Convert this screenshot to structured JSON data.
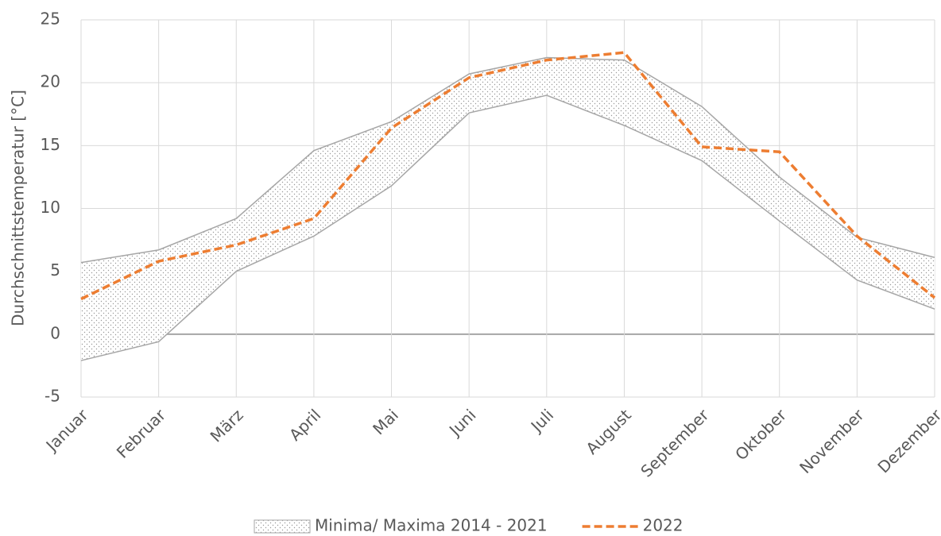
{
  "chart_data": {
    "type": "line",
    "y_label": "Durchschnittstemperatur [°C]",
    "categories": [
      "Januar",
      "Februar",
      "März",
      "April",
      "Mai",
      "Juni",
      "Juli",
      "August",
      "September",
      "Oktober",
      "November",
      "Dezember"
    ],
    "series": [
      {
        "name": "Minima/ Maxima 2014 - 2021",
        "color": "#a6a6a6",
        "upper": [
          5.7,
          6.7,
          9.2,
          14.6,
          16.9,
          20.7,
          22.0,
          21.8,
          18.1,
          12.5,
          7.7,
          6.1
        ],
        "lower": [
          -2.1,
          -0.6,
          5.0,
          7.8,
          11.8,
          17.6,
          19.0,
          16.6,
          13.8,
          9.0,
          4.3,
          2.0
        ]
      },
      {
        "name": "2022",
        "color": "#ed7d31",
        "dashed": true,
        "values": [
          2.8,
          5.8,
          7.1,
          9.2,
          16.4,
          20.4,
          21.8,
          22.4,
          14.9,
          14.5,
          7.8,
          2.9
        ]
      }
    ],
    "ylim": [
      -5,
      25
    ],
    "yticks": [
      -5,
      0,
      5,
      10,
      15,
      20,
      25
    ],
    "grid": true,
    "legend": "bottom"
  }
}
